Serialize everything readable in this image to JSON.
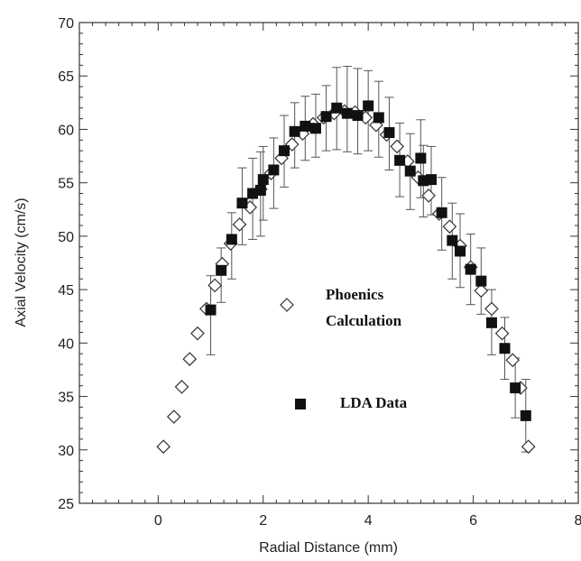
{
  "chart_data": {
    "type": "scatter",
    "xlabel": "Radial Distance (mm)",
    "ylabel": "Axial Velocity (cm/s)",
    "xlim": [
      -1.5,
      8
    ],
    "ylim": [
      25,
      70
    ],
    "x_ticks": [
      0,
      2,
      4,
      6,
      8
    ],
    "y_ticks": [
      25,
      30,
      35,
      40,
      45,
      50,
      55,
      60,
      65,
      70
    ],
    "grid": false,
    "series": [
      {
        "name": "Phoenics Calculation",
        "marker": "diamond-open",
        "x": [
          0.1,
          0.3,
          0.45,
          0.6,
          0.75,
          0.92,
          1.08,
          1.22,
          1.38,
          1.55,
          1.75,
          1.95,
          2.15,
          2.35,
          2.55,
          2.75,
          2.95,
          3.15,
          3.35,
          3.55,
          3.75,
          3.95,
          4.15,
          4.35,
          4.55,
          4.75,
          4.95,
          5.15,
          5.35,
          5.55,
          5.75,
          5.95,
          6.15,
          6.35,
          6.55,
          6.75,
          6.9,
          7.05
        ],
        "y": [
          30.3,
          33.1,
          35.9,
          38.5,
          40.9,
          43.2,
          45.4,
          47.4,
          49.3,
          51.1,
          52.7,
          54.4,
          55.9,
          57.3,
          58.6,
          59.6,
          60.5,
          61.1,
          61.5,
          61.7,
          61.6,
          61.1,
          60.4,
          59.5,
          58.4,
          57.0,
          55.5,
          53.8,
          52.1,
          50.9,
          49.1,
          47.1,
          44.9,
          43.2,
          40.9,
          38.4,
          35.8,
          30.3
        ]
      },
      {
        "name": "LDA Data",
        "marker": "square-filled",
        "points": [
          {
            "x": 1.0,
            "y": 43.1,
            "lo": 38.9,
            "hi": 46.3
          },
          {
            "x": 1.2,
            "y": 46.8,
            "lo": 43.8,
            "hi": 48.9
          },
          {
            "x": 1.4,
            "y": 49.7,
            "lo": 46.0,
            "hi": 52.2
          },
          {
            "x": 1.6,
            "y": 53.1,
            "lo": 49.2,
            "hi": 56.4
          },
          {
            "x": 1.8,
            "y": 54.0,
            "lo": 49.7,
            "hi": 57.3
          },
          {
            "x": 1.95,
            "y": 54.3,
            "lo": 50.0,
            "hi": 57.9
          },
          {
            "x": 2.0,
            "y": 55.3,
            "lo": 51.5,
            "hi": 58.4
          },
          {
            "x": 2.2,
            "y": 56.2,
            "lo": 52.6,
            "hi": 59.2
          },
          {
            "x": 2.4,
            "y": 58.0,
            "lo": 54.6,
            "hi": 61.3
          },
          {
            "x": 2.6,
            "y": 59.8,
            "lo": 56.4,
            "hi": 62.5
          },
          {
            "x": 2.8,
            "y": 60.3,
            "lo": 57.1,
            "hi": 63.1
          },
          {
            "x": 3.0,
            "y": 60.1,
            "lo": 57.4,
            "hi": 63.3
          },
          {
            "x": 3.2,
            "y": 61.2,
            "lo": 58.0,
            "hi": 64.1
          },
          {
            "x": 3.4,
            "y": 62.0,
            "lo": 58.1,
            "hi": 65.8
          },
          {
            "x": 3.6,
            "y": 61.5,
            "lo": 57.9,
            "hi": 65.9
          },
          {
            "x": 3.8,
            "y": 61.3,
            "lo": 57.7,
            "hi": 65.7
          },
          {
            "x": 4.0,
            "y": 62.2,
            "lo": 58.0,
            "hi": 65.5
          },
          {
            "x": 4.2,
            "y": 61.1,
            "lo": 57.4,
            "hi": 64.5
          },
          {
            "x": 4.4,
            "y": 59.7,
            "lo": 56.2,
            "hi": 63.0
          },
          {
            "x": 4.6,
            "y": 57.1,
            "lo": 53.7,
            "hi": 60.6
          },
          {
            "x": 4.8,
            "y": 56.1,
            "lo": 52.5,
            "hi": 59.6
          },
          {
            "x": 5.0,
            "y": 57.3,
            "lo": 53.6,
            "hi": 60.9
          },
          {
            "x": 5.05,
            "y": 55.2,
            "lo": 51.8,
            "hi": 58.5
          },
          {
            "x": 5.2,
            "y": 55.3,
            "lo": 52.0,
            "hi": 58.4
          },
          {
            "x": 5.4,
            "y": 52.2,
            "lo": 48.7,
            "hi": 55.5
          },
          {
            "x": 5.6,
            "y": 49.6,
            "lo": 46.0,
            "hi": 53.1
          },
          {
            "x": 5.75,
            "y": 48.6,
            "lo": 45.2,
            "hi": 52.1
          },
          {
            "x": 5.95,
            "y": 46.9,
            "lo": 43.6,
            "hi": 50.2
          },
          {
            "x": 6.15,
            "y": 45.8,
            "lo": 42.7,
            "hi": 48.9
          },
          {
            "x": 6.35,
            "y": 41.9,
            "lo": 38.9,
            "hi": 45.0
          },
          {
            "x": 6.6,
            "y": 39.5,
            "lo": 36.6,
            "hi": 42.4
          },
          {
            "x": 6.8,
            "y": 35.8,
            "lo": 33.0,
            "hi": 38.6
          },
          {
            "x": 7.0,
            "y": 33.2,
            "lo": 29.8,
            "hi": 36.6
          }
        ]
      }
    ],
    "legend": {
      "placement": "inside-center",
      "entries": [
        {
          "label_line1": "Phoenics",
          "label_line2": "Calculation",
          "marker": "diamond-open"
        },
        {
          "label_line1": "LDA Data",
          "label_line2": "",
          "marker": "square-filled"
        }
      ]
    }
  }
}
